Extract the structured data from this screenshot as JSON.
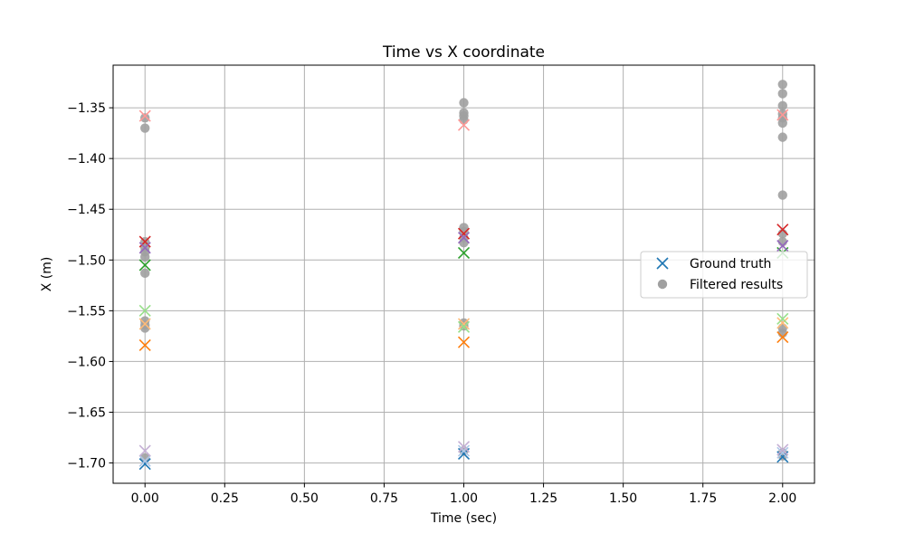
{
  "chart_data": {
    "type": "scatter",
    "title": "Time vs X coordinate",
    "xlabel": "Time (sec)",
    "ylabel": "X (m)",
    "xlim": [
      -0.1,
      2.1
    ],
    "ylim": [
      -1.72,
      -1.308
    ],
    "xticks": [
      0.0,
      0.25,
      0.5,
      0.75,
      1.0,
      1.25,
      1.5,
      1.75,
      2.0
    ],
    "xtick_labels": [
      "0.00",
      "0.25",
      "0.50",
      "0.75",
      "1.00",
      "1.25",
      "1.50",
      "1.75",
      "2.00"
    ],
    "yticks": [
      -1.7,
      -1.65,
      -1.6,
      -1.55,
      -1.5,
      -1.45,
      -1.4,
      -1.35
    ],
    "ytick_labels": [
      "−1.70",
      "−1.65",
      "−1.60",
      "−1.55",
      "−1.50",
      "−1.45",
      "−1.40",
      "−1.35"
    ],
    "grid": true,
    "legend": {
      "placement": "center-right",
      "entries": [
        {
          "label": "Ground truth",
          "marker": "x",
          "color": "#1f77b4"
        },
        {
          "label": "Filtered results",
          "marker": "o",
          "color": "#a0a0a0"
        }
      ]
    },
    "ground_truth_series": [
      {
        "color": "#1f77b4",
        "points": [
          [
            0,
            -1.701
          ],
          [
            1,
            -1.691
          ],
          [
            2,
            -1.694
          ]
        ]
      },
      {
        "color": "#aec7e8",
        "points": [
          [
            0,
            -1.698
          ],
          [
            1,
            -1.688
          ],
          [
            2,
            -1.69
          ]
        ]
      },
      {
        "color": "#ff7f0e",
        "points": [
          [
            0,
            -1.584
          ],
          [
            1,
            -1.581
          ],
          [
            2,
            -1.576
          ]
        ]
      },
      {
        "color": "#ffbb78",
        "points": [
          [
            0,
            -1.563
          ],
          [
            1,
            -1.563
          ],
          [
            2,
            -1.562
          ]
        ]
      },
      {
        "color": "#2ca02c",
        "points": [
          [
            0,
            -1.505
          ],
          [
            1,
            -1.493
          ],
          [
            2,
            -1.493
          ]
        ]
      },
      {
        "color": "#98df8a",
        "points": [
          [
            0,
            -1.55
          ],
          [
            1,
            -1.566
          ],
          [
            2,
            -1.558
          ]
        ]
      },
      {
        "color": "#d62728",
        "points": [
          [
            0,
            -1.482
          ],
          [
            1,
            -1.474
          ],
          [
            2,
            -1.47
          ]
        ]
      },
      {
        "color": "#ff9896",
        "points": [
          [
            0,
            -1.358
          ],
          [
            1,
            -1.367
          ],
          [
            2,
            -1.357
          ]
        ]
      },
      {
        "color": "#9467bd",
        "points": [
          [
            0,
            -1.488
          ],
          [
            1,
            -1.478
          ],
          [
            2,
            -1.486
          ]
        ]
      },
      {
        "color": "#c5b0d5",
        "points": [
          [
            0,
            -1.688
          ],
          [
            1,
            -1.684
          ],
          [
            2,
            -1.687
          ]
        ]
      }
    ],
    "filtered_results": {
      "color": "#a0a0a0",
      "points": [
        [
          0,
          -1.36
        ],
        [
          0,
          -1.37
        ],
        [
          0,
          -1.482
        ],
        [
          0,
          -1.488
        ],
        [
          0,
          -1.492
        ],
        [
          0,
          -1.497
        ],
        [
          0,
          -1.513
        ],
        [
          0,
          -1.56
        ],
        [
          0,
          -1.564
        ],
        [
          0,
          -1.567
        ],
        [
          0,
          -1.695
        ],
        [
          1,
          -1.345
        ],
        [
          1,
          -1.355
        ],
        [
          1,
          -1.358
        ],
        [
          1,
          -1.362
        ],
        [
          1,
          -1.468
        ],
        [
          1,
          -1.472
        ],
        [
          1,
          -1.478
        ],
        [
          1,
          -1.483
        ],
        [
          1,
          -1.562
        ],
        [
          1,
          -1.565
        ],
        [
          1,
          -1.688
        ],
        [
          2,
          -1.327
        ],
        [
          2,
          -1.336
        ],
        [
          2,
          -1.348
        ],
        [
          2,
          -1.356
        ],
        [
          2,
          -1.36
        ],
        [
          2,
          -1.365
        ],
        [
          2,
          -1.379
        ],
        [
          2,
          -1.436
        ],
        [
          2,
          -1.474
        ],
        [
          2,
          -1.482
        ],
        [
          2,
          -1.567
        ],
        [
          2,
          -1.572
        ],
        [
          2,
          -1.69
        ],
        [
          2,
          -1.693
        ]
      ]
    }
  }
}
